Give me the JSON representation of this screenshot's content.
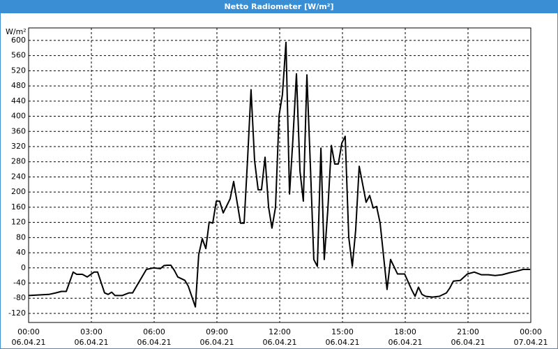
{
  "chart_data": {
    "type": "line",
    "title": "Netto Radiometer [W/m²]",
    "y_label": "W/m²",
    "xlim": [
      0,
      24
    ],
    "ylim": [
      -144,
      633
    ],
    "yticks": [
      -120,
      -80,
      -40,
      0,
      40,
      80,
      120,
      160,
      200,
      240,
      280,
      320,
      360,
      400,
      440,
      480,
      520,
      560,
      600
    ],
    "xticks": [
      {
        "value": 0,
        "label": "00:00",
        "date": "06.04.21"
      },
      {
        "value": 3,
        "label": "03:00",
        "date": "06.04.21"
      },
      {
        "value": 6,
        "label": "06:00",
        "date": "06.04.21"
      },
      {
        "value": 9,
        "label": "09:00",
        "date": "06.04.21"
      },
      {
        "value": 12,
        "label": "12:00",
        "date": "06.04.21"
      },
      {
        "value": 15,
        "label": "15:00",
        "date": "06.04.21"
      },
      {
        "value": 18,
        "label": "18:00",
        "date": "06.04.21"
      },
      {
        "value": 21,
        "label": "21:00",
        "date": "06.04.21"
      },
      {
        "value": 24,
        "label": "00:00",
        "date": "07.04.21"
      }
    ],
    "grid": true,
    "color": "#000000",
    "x": [
      0,
      0.97,
      1.3,
      1.57,
      1.8,
      2.13,
      2.3,
      2.57,
      2.8,
      3.13,
      3.3,
      3.63,
      3.8,
      3.97,
      4.13,
      4.47,
      4.8,
      4.97,
      5.3,
      5.63,
      5.97,
      6.3,
      6.47,
      6.63,
      6.8,
      6.97,
      7.13,
      7.47,
      7.63,
      7.97,
      8.13,
      8.3,
      8.47,
      8.63,
      8.8,
      8.97,
      9.13,
      9.3,
      9.63,
      9.8,
      10.13,
      10.3,
      10.47,
      10.63,
      10.8,
      10.97,
      11.13,
      11.3,
      11.47,
      11.63,
      11.8,
      11.97,
      12.13,
      12.3,
      12.47,
      12.63,
      12.8,
      12.97,
      13.13,
      13.3,
      13.47,
      13.63,
      13.8,
      13.97,
      14.13,
      14.3,
      14.47,
      14.63,
      14.8,
      14.97,
      15.13,
      15.3,
      15.47,
      15.63,
      15.8,
      16.13,
      16.3,
      16.47,
      16.63,
      16.8,
      17.13,
      17.3,
      17.63,
      17.97,
      18.3,
      18.47,
      18.63,
      18.8,
      18.97,
      19.3,
      19.63,
      19.97,
      20.13,
      20.3,
      20.63,
      20.97,
      21.3,
      21.63,
      21.97,
      22.3,
      22.63,
      22.97,
      23.3,
      23.63,
      23.97
    ],
    "values": [
      -73,
      -70,
      -66,
      -62,
      -62,
      -11,
      -17,
      -17,
      -24,
      -11,
      -11,
      -66,
      -70,
      -64,
      -73,
      -73,
      -66,
      -66,
      -35,
      -4,
      0,
      -2,
      6,
      7,
      7,
      -7,
      -24,
      -33,
      -48,
      -103,
      35,
      77,
      51,
      121,
      118,
      176,
      176,
      145,
      182,
      228,
      118,
      118,
      292,
      470,
      283,
      206,
      206,
      292,
      160,
      105,
      160,
      402,
      457,
      595,
      195,
      338,
      512,
      255,
      176,
      509,
      264,
      22,
      4,
      316,
      22,
      154,
      323,
      274,
      274,
      329,
      347,
      81,
      4,
      99,
      268,
      173,
      191,
      158,
      162,
      118,
      -57,
      22,
      -16,
      -16,
      -57,
      -75,
      -51,
      -70,
      -75,
      -77,
      -75,
      -66,
      -53,
      -35,
      -33,
      -16,
      -11,
      -18,
      -18,
      -20,
      -18,
      -13,
      -9,
      -4,
      -4
    ]
  }
}
